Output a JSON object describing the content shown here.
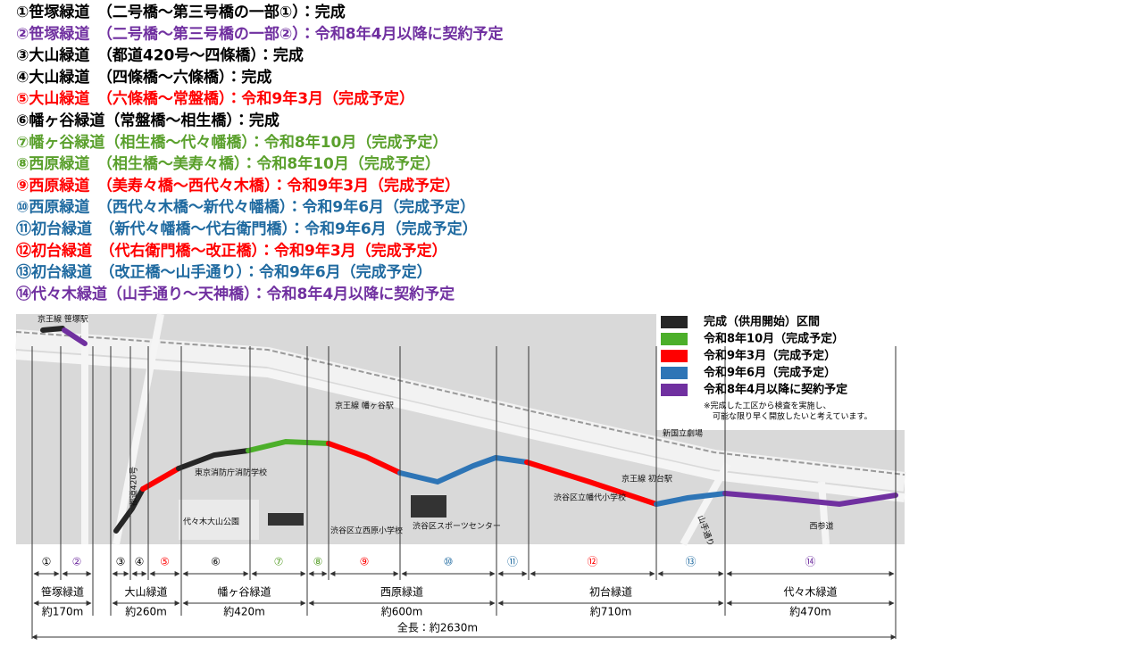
{
  "routes": [
    {
      "text": "①笹塚緑道　（二号橋～第三号橋の一部①）：完成",
      "color": "#000000"
    },
    {
      "text": "②笹塚緑道　（二号橋～第三号橋の一部②）：令和8年4月以降に契約予定",
      "color": "#7030a0"
    },
    {
      "text": "③大山緑道　（都道420号～四條橋）：完成",
      "color": "#000000"
    },
    {
      "text": "④大山緑道　（四條橋～六條橋）：完成",
      "color": "#000000"
    },
    {
      "text": "⑤大山緑道　（六條橋～常盤橋）：令和9年3月（完成予定）",
      "color": "#ff0000"
    },
    {
      "text": "⑥幡ヶ谷緑道（常盤橋～相生橋）：完成",
      "color": "#000000"
    },
    {
      "text": "⑦幡ヶ谷緑道（相生橋～代々幡橋）：令和8年10月（完成予定）",
      "color": "#5aa02c"
    },
    {
      "text": "⑧西原緑道　（相生橋～美寿々橋）：令和8年10月（完成予定）",
      "color": "#5aa02c"
    },
    {
      "text": "⑨西原緑道　（美寿々橋～西代々木橋）：令和9年3月（完成予定）",
      "color": "#ff0000"
    },
    {
      "text": "⑩西原緑道　（西代々木橋～新代々幡橋）：令和9年6月（完成予定）",
      "color": "#1f6aa0"
    },
    {
      "text": "⑪初台緑道　（新代々幡橋～代右衛門橋）：令和9年6月（完成予定）",
      "color": "#1f6aa0"
    },
    {
      "text": "⑫初台緑道　（代右衛門橋～改正橋）：令和9年3月（完成予定）",
      "color": "#ff0000"
    },
    {
      "text": "⑬初台緑道　（改正橋～山手通り）：令和9年6月（完成予定）",
      "color": "#1f6aa0"
    },
    {
      "text": "⑭代々木緑道（山手通り～天神橋）：令和8年4月以降に契約予定",
      "color": "#7030a0"
    }
  ],
  "legend": {
    "items": [
      {
        "label": "完成（供用開始）区間",
        "color": "#262626"
      },
      {
        "label": "令和8年10月（完成予定）",
        "color": "#4caf2a"
      },
      {
        "label": "令和9年3月（完成予定）",
        "color": "#ff0000"
      },
      {
        "label": "令和9年6月（完成予定）",
        "color": "#2e75b6"
      },
      {
        "label": "令和8年4月以降に契約予定",
        "color": "#7030a0"
      }
    ],
    "note": [
      "※完成した工区から検査を実施し、",
      "可能な限り早く開放したいと考えています。"
    ]
  },
  "map_labels": {
    "sasazuka": "京王線 笹塚駅",
    "hatagaya": "京王線 幡ヶ谷駅",
    "hatsudai": "京王線 初台駅",
    "fire": "東京消防庁消防学校",
    "park": "代々木大山公園",
    "nishihara_school": "渋谷区立西原小学校",
    "sports": "渋谷区スポーツセンター",
    "hatashiro_school": "渋谷区立幡代小学校",
    "theater": "新国立劇場",
    "road420": "都道420号",
    "yamate": "山手通り",
    "sando": "西参道"
  },
  "sections": {
    "numbers": [
      {
        "label": "①",
        "color": "#000000"
      },
      {
        "label": "②",
        "color": "#7030a0"
      },
      {
        "label": "③",
        "color": "#000000"
      },
      {
        "label": "④",
        "color": "#000000"
      },
      {
        "label": "⑤",
        "color": "#ff0000"
      },
      {
        "label": "⑥",
        "color": "#000000"
      },
      {
        "label": "⑦",
        "color": "#5aa02c"
      },
      {
        "label": "⑧",
        "color": "#5aa02c"
      },
      {
        "label": "⑨",
        "color": "#ff0000"
      },
      {
        "label": "⑩",
        "color": "#1f6aa0"
      },
      {
        "label": "⑪",
        "color": "#1f6aa0"
      },
      {
        "label": "⑫",
        "color": "#ff0000"
      },
      {
        "label": "⑬",
        "color": "#1f6aa0"
      },
      {
        "label": "⑭",
        "color": "#7030a0"
      }
    ],
    "groups": [
      {
        "name": "笹塚緑道",
        "length": "約170m"
      },
      {
        "name": "大山緑道",
        "length": "約260m"
      },
      {
        "name": "幡ヶ谷緑道",
        "length": "約420m"
      },
      {
        "name": "西原緑道",
        "length": "約600m"
      },
      {
        "name": "初台緑道",
        "length": "約710m"
      },
      {
        "name": "代々木緑道",
        "length": "約470m"
      }
    ],
    "total": "全長：約2630m"
  }
}
